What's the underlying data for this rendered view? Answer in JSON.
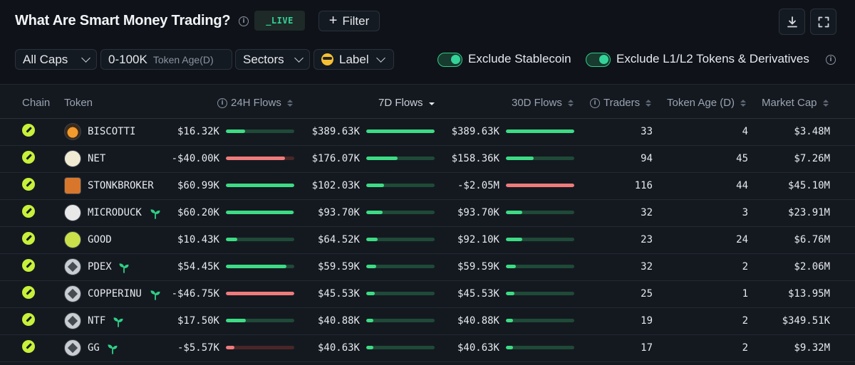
{
  "header": {
    "title": "What Are Smart Money Trading?",
    "live": "_LIVE",
    "filter_label": "Filter"
  },
  "toolbar": {
    "caps": "All Caps",
    "token_age_value": "0-100K",
    "token_age_label": "Token Age(D)",
    "sectors": "Sectors",
    "label": "Label",
    "exclude_stablecoin": "Exclude Stablecoin",
    "exclude_l1l2": "Exclude L1/L2 Tokens & Derivatives"
  },
  "columns": {
    "chain": "Chain",
    "token": "Token",
    "flows_24h": "24H Flows",
    "flows_7d": "7D Flows",
    "flows_30d": "30D Flows",
    "traders": "Traders",
    "token_age": "Token Age (D)",
    "market_cap": "Market Cap"
  },
  "colors": {
    "accent": "#34d399",
    "positive_bar": "#3ddc84",
    "negative_bar": "#f07b7b",
    "chain_icon": "#c7f13a"
  },
  "rows": [
    {
      "token": "BISCOTTI",
      "icon": "biscotti-logo",
      "sprout": false,
      "f24": "$16.32K",
      "f24_level": 0.28,
      "f24_neg": false,
      "f7": "$389.63K",
      "f7_level": 1.0,
      "f7_neg": false,
      "f30": "$389.63K",
      "f30_level": 1.0,
      "f30_neg": false,
      "traders": "33",
      "age": "4",
      "mcap": "$3.48M"
    },
    {
      "token": "NET",
      "icon": "net-logo",
      "sprout": false,
      "f24": "-$40.00K",
      "f24_level": 0.86,
      "f24_neg": true,
      "f7": "$176.07K",
      "f7_level": 0.46,
      "f7_neg": false,
      "f30": "$158.36K",
      "f30_level": 0.41,
      "f30_neg": false,
      "traders": "94",
      "age": "45",
      "mcap": "$7.26M"
    },
    {
      "token": "STONKBROKER",
      "icon": "stonkbroker-logo",
      "sprout": false,
      "f24": "$60.99K",
      "f24_level": 1.0,
      "f24_neg": false,
      "f7": "$102.03K",
      "f7_level": 0.26,
      "f7_neg": false,
      "f30": "-$2.05M",
      "f30_level": 1.0,
      "f30_neg": true,
      "traders": "116",
      "age": "44",
      "mcap": "$45.10M"
    },
    {
      "token": "MICRODUCK",
      "icon": "microduck-logo",
      "sprout": true,
      "f24": "$60.20K",
      "f24_level": 0.99,
      "f24_neg": false,
      "f7": "$93.70K",
      "f7_level": 0.24,
      "f7_neg": false,
      "f30": "$93.70K",
      "f30_level": 0.24,
      "f30_neg": false,
      "traders": "32",
      "age": "3",
      "mcap": "$23.91M"
    },
    {
      "token": "GOOD",
      "icon": "good-logo",
      "sprout": false,
      "f24": "$10.43K",
      "f24_level": 0.17,
      "f24_neg": false,
      "f7": "$64.52K",
      "f7_level": 0.17,
      "f7_neg": false,
      "f30": "$92.10K",
      "f30_level": 0.24,
      "f30_neg": false,
      "traders": "23",
      "age": "24",
      "mcap": "$6.76M"
    },
    {
      "token": "PDEX",
      "icon": "generic-token",
      "sprout": true,
      "f24": "$54.45K",
      "f24_level": 0.89,
      "f24_neg": false,
      "f7": "$59.59K",
      "f7_level": 0.15,
      "f7_neg": false,
      "f30": "$59.59K",
      "f30_level": 0.15,
      "f30_neg": false,
      "traders": "32",
      "age": "2",
      "mcap": "$2.06M"
    },
    {
      "token": "COPPERINU",
      "icon": "generic-token",
      "sprout": true,
      "f24": "-$46.75K",
      "f24_level": 1.0,
      "f24_neg": true,
      "f7": "$45.53K",
      "f7_level": 0.12,
      "f7_neg": false,
      "f30": "$45.53K",
      "f30_level": 0.12,
      "f30_neg": false,
      "traders": "25",
      "age": "1",
      "mcap": "$13.95M"
    },
    {
      "token": "NTF",
      "icon": "generic-token",
      "sprout": true,
      "f24": "$17.50K",
      "f24_level": 0.29,
      "f24_neg": false,
      "f7": "$40.88K",
      "f7_level": 0.1,
      "f7_neg": false,
      "f30": "$40.88K",
      "f30_level": 0.1,
      "f30_neg": false,
      "traders": "19",
      "age": "2",
      "mcap": "$349.51K"
    },
    {
      "token": "GG",
      "icon": "generic-token",
      "sprout": true,
      "f24": "-$5.57K",
      "f24_level": 0.12,
      "f24_neg": true,
      "f7": "$40.63K",
      "f7_level": 0.1,
      "f7_neg": false,
      "f30": "$40.63K",
      "f30_level": 0.1,
      "f30_neg": false,
      "traders": "17",
      "age": "2",
      "mcap": "$9.32M"
    }
  ]
}
